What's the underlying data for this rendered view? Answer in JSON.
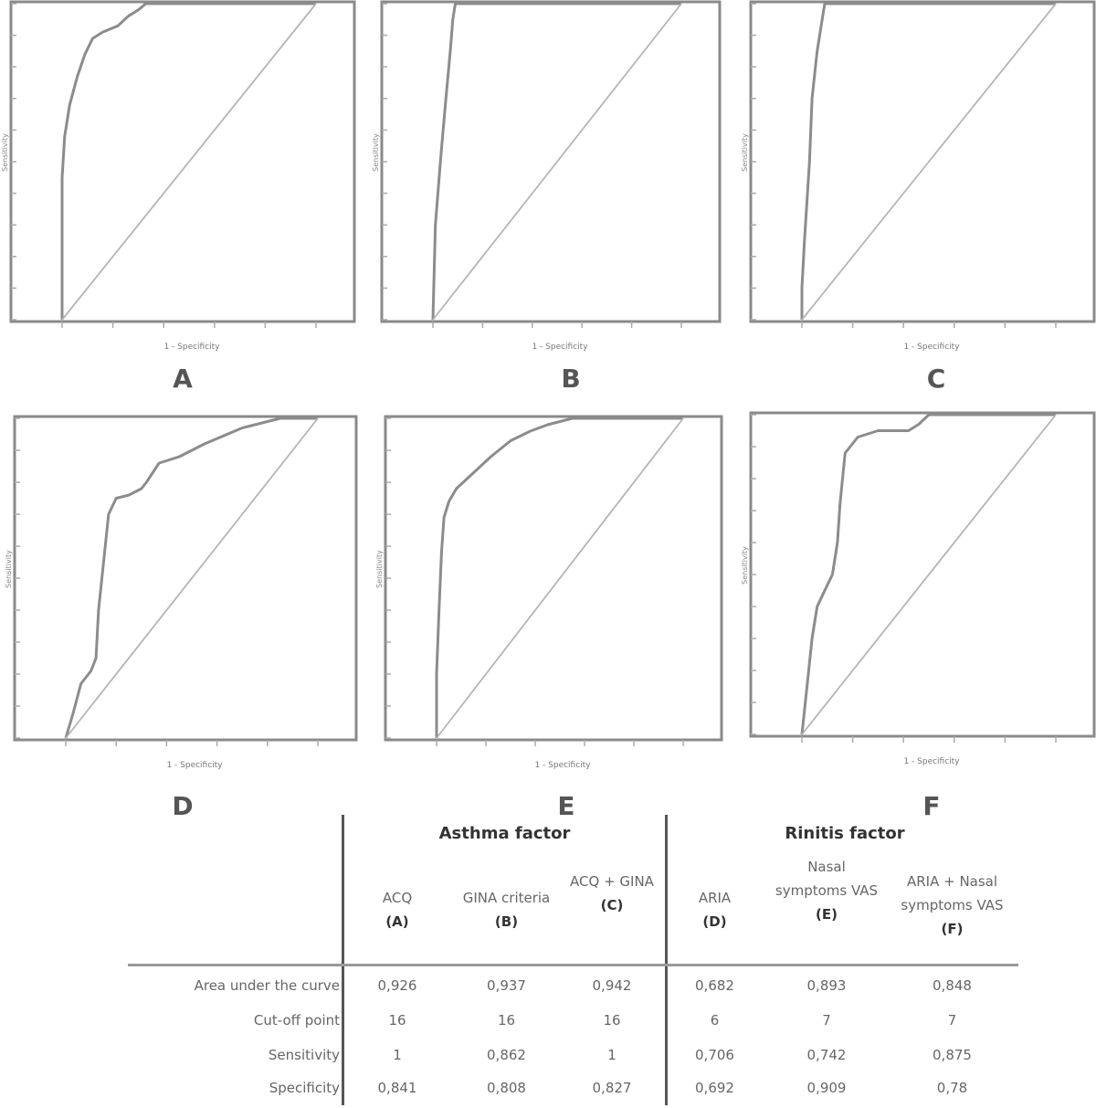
{
  "chart_data": [
    {
      "type": "line",
      "panel": "A",
      "xlabel": "1 - Specificity",
      "ylabel": "Sensitivity",
      "xlim": [
        0,
        1
      ],
      "ylim": [
        0,
        1
      ],
      "series": [
        {
          "x": [
            0,
            0.0,
            0.01,
            0.03,
            0.06,
            0.09,
            0.12,
            0.16,
            0.22,
            0.26,
            0.3,
            0.33,
            1.0
          ],
          "y": [
            0,
            0.45,
            0.58,
            0.68,
            0.77,
            0.84,
            0.89,
            0.91,
            0.93,
            0.96,
            0.98,
            1.0,
            1.0
          ]
        },
        {
          "x": [
            0,
            1
          ],
          "y": [
            0,
            1
          ]
        }
      ]
    },
    {
      "type": "line",
      "panel": "B",
      "xlabel": "1 - Specificity",
      "ylabel": "Sensitivity",
      "xlim": [
        0,
        1
      ],
      "ylim": [
        0,
        1
      ],
      "series": [
        {
          "x": [
            0,
            0.01,
            0.03,
            0.05,
            0.07,
            0.08,
            0.09,
            1.0
          ],
          "y": [
            0,
            0.3,
            0.5,
            0.68,
            0.85,
            0.95,
            1.0,
            1.0
          ]
        },
        {
          "x": [
            0,
            1
          ],
          "y": [
            0,
            1
          ]
        }
      ]
    },
    {
      "type": "line",
      "panel": "C",
      "xlabel": "1 - Specificity",
      "ylabel": "Sensitivity",
      "xlim": [
        0,
        1
      ],
      "ylim": [
        0,
        1
      ],
      "series": [
        {
          "x": [
            0,
            0.0,
            0.01,
            0.03,
            0.04,
            0.06,
            0.08,
            0.09,
            1.0
          ],
          "y": [
            0,
            0.1,
            0.25,
            0.5,
            0.7,
            0.85,
            0.95,
            1.0,
            1.0
          ]
        },
        {
          "x": [
            0,
            1
          ],
          "y": [
            0,
            1
          ]
        }
      ]
    },
    {
      "type": "line",
      "panel": "D",
      "xlabel": "1 - Specificity",
      "ylabel": "Sensitivity",
      "xlim": [
        0,
        1
      ],
      "ylim": [
        0,
        1
      ],
      "series": [
        {
          "x": [
            0,
            0.03,
            0.06,
            0.1,
            0.12,
            0.13,
            0.15,
            0.17,
            0.2,
            0.25,
            0.3,
            0.32,
            0.37,
            0.45,
            0.55,
            0.7,
            0.85,
            1.0
          ],
          "y": [
            0,
            0.08,
            0.17,
            0.21,
            0.25,
            0.4,
            0.55,
            0.7,
            0.75,
            0.76,
            0.78,
            0.8,
            0.86,
            0.88,
            0.92,
            0.97,
            1.0,
            1.0
          ]
        },
        {
          "x": [
            0,
            1
          ],
          "y": [
            0,
            1
          ]
        }
      ]
    },
    {
      "type": "line",
      "panel": "E",
      "xlabel": "1 - Specificity",
      "ylabel": "Sensitivity",
      "xlim": [
        0,
        1
      ],
      "ylim": [
        0,
        1
      ],
      "series": [
        {
          "x": [
            0,
            0.0,
            0.01,
            0.02,
            0.03,
            0.05,
            0.08,
            0.15,
            0.22,
            0.3,
            0.38,
            0.45,
            0.55,
            1.0
          ],
          "y": [
            0,
            0.2,
            0.4,
            0.58,
            0.69,
            0.74,
            0.78,
            0.83,
            0.88,
            0.93,
            0.96,
            0.98,
            1.0,
            1.0
          ]
        },
        {
          "x": [
            0,
            1
          ],
          "y": [
            0,
            1
          ]
        }
      ]
    },
    {
      "type": "line",
      "panel": "F",
      "xlabel": "1 - Specificity",
      "ylabel": "Sensitivity",
      "xlim": [
        0,
        1
      ],
      "ylim": [
        0,
        1
      ],
      "series": [
        {
          "x": [
            0,
            0.02,
            0.04,
            0.06,
            0.09,
            0.12,
            0.14,
            0.15,
            0.17,
            0.22,
            0.3,
            0.42,
            0.46,
            0.5,
            1.0
          ],
          "y": [
            0,
            0.15,
            0.3,
            0.4,
            0.45,
            0.5,
            0.6,
            0.72,
            0.88,
            0.93,
            0.95,
            0.95,
            0.97,
            1.0,
            1.0
          ]
        },
        {
          "x": [
            0,
            1
          ],
          "y": [
            0,
            1
          ]
        }
      ]
    }
  ],
  "panel_letters": [
    "A",
    "B",
    "C",
    "D",
    "E",
    "F"
  ],
  "table": {
    "groups": [
      "Asthma factor",
      "Rinitis factor"
    ],
    "columns": [
      {
        "name": "ACQ",
        "code": "(A)"
      },
      {
        "name": "GINA criteria",
        "code": "(B)"
      },
      {
        "name": "ACQ + GINA",
        "code": "(C)"
      },
      {
        "name": "ARIA",
        "code": "(D)"
      },
      {
        "name": "Nasal symptoms VAS",
        "code": "(E)"
      },
      {
        "name": "ARIA + Nasal symptoms VAS",
        "code": "(F)"
      }
    ],
    "rows": [
      {
        "label": "Area under the curve",
        "values": [
          "0,926",
          "0,937",
          "0,942",
          "0,682",
          "0,893",
          "0,848"
        ]
      },
      {
        "label": "Cut-off point",
        "values": [
          "16",
          "16",
          "16",
          "6",
          "7",
          "7"
        ]
      },
      {
        "label": "Sensitivity",
        "values": [
          "1",
          "0,862",
          "1",
          "0,706",
          "0,742",
          "0,875"
        ]
      },
      {
        "label": "Specificity",
        "values": [
          "0,841",
          "0,808",
          "0,827",
          "0,692",
          "0,909",
          "0,78"
        ]
      }
    ]
  }
}
